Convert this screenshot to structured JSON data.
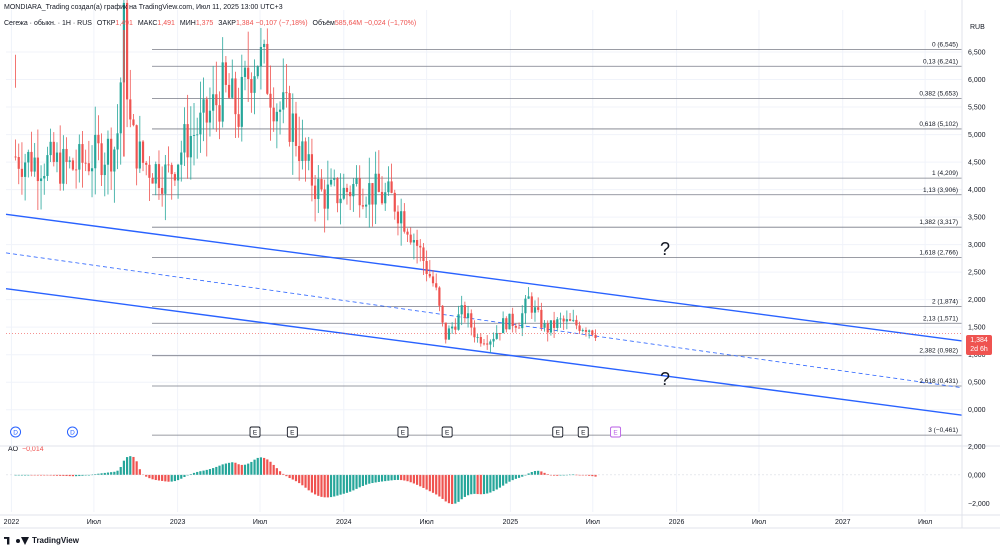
{
  "header": {
    "title": "MONDIARA_Trading создал(а) график на TradingView.com, Июл 11, 2025 13:00 UTC+3",
    "symbol": "Сегежа · обыкн. · 1Н · RUS",
    "open_label": "ОТКР",
    "open_value": "1,491",
    "high_label": "МАКС",
    "high_value": "1,491",
    "low_label": "МИН",
    "low_value": "1,375",
    "close_label": "ЗАКР",
    "close_value": "1,384",
    "change_value": "−0,107 (−7,18%)",
    "volume_label": "Объём",
    "volume_value": "585,64M",
    "volume_change": "−0,024 (−1,70%)"
  },
  "price_axis": {
    "currency": "RUB",
    "ticks": [
      "6,500",
      "6,000",
      "5,500",
      "5,000",
      "4,500",
      "4,000",
      "3,500",
      "3,000",
      "2,500",
      "2,000",
      "1,500",
      "1,000",
      "0,500",
      "0,000"
    ],
    "current_price": "1,384",
    "current_timer": "2d 6h"
  },
  "oscillator": {
    "label": "AO",
    "value": "−0,014",
    "ticks": [
      "2,000",
      "0,000",
      "−2,000"
    ]
  },
  "time_axis": {
    "labels": [
      "2022",
      "Июл",
      "2023",
      "Июл",
      "2024",
      "Июл",
      "2025",
      "Июл",
      "2026",
      "Июл",
      "2027",
      "Июл"
    ]
  },
  "fib_levels": [
    {
      "label": "0 (6,545)",
      "value": 6.545
    },
    {
      "label": "0,13 (6,241)",
      "value": 6.241
    },
    {
      "label": "0,382 (5,653)",
      "value": 5.653
    },
    {
      "label": "0,618 (5,102)",
      "value": 5.102
    },
    {
      "label": "1 (4,209)",
      "value": 4.209
    },
    {
      "label": "1,13 (3,906)",
      "value": 3.906
    },
    {
      "label": "1,382 (3,317)",
      "value": 3.317
    },
    {
      "label": "1,618 (2,766)",
      "value": 2.766
    },
    {
      "label": "2 (1,874)",
      "value": 1.874
    },
    {
      "label": "2,13 (1,571)",
      "value": 1.571
    },
    {
      "label": "2,382 (0,982)",
      "value": 0.982
    },
    {
      "label": "2,618 (0,431)",
      "value": 0.431
    },
    {
      "label": "3 (−0,461)",
      "value": -0.461
    }
  ],
  "annotations": {
    "question_upper": "?",
    "question_lower": "?",
    "dividend_marker": "D",
    "earnings_marker": "E"
  },
  "colors": {
    "up": "#26a69a",
    "down": "#ef5350",
    "channel": "#2962ff",
    "fib": "#787b86",
    "marker_purple": "#b95ee6"
  },
  "chart_data": {
    "type": "candlestick",
    "title": "Сегежа · обыкн. · 1Н · RUS",
    "ylabel": "RUB",
    "ylim": [
      -0.55,
      6.9
    ],
    "x_range": [
      "2021-12-20",
      "2027-09-20"
    ],
    "close_path": [
      [
        "2022-01-10",
        4.6
      ],
      [
        "2022-05-15",
        4.4
      ],
      [
        "2022-08-20",
        4.8
      ],
      [
        "2022-09-05",
        6.9
      ],
      [
        "2022-09-20",
        5.0
      ],
      [
        "2022-10-15",
        4.5
      ],
      [
        "2022-12-10",
        4.25
      ],
      [
        "2023-01-20",
        4.9
      ],
      [
        "2023-03-01",
        5.2
      ],
      [
        "2023-04-10",
        5.8
      ],
      [
        "2023-05-15",
        5.4
      ],
      [
        "2023-06-05",
        6.1
      ],
      [
        "2023-06-25",
        6.45
      ],
      [
        "2023-07-10",
        6.2
      ],
      [
        "2023-08-10",
        5.5
      ],
      [
        "2023-09-10",
        5.2
      ],
      [
        "2023-10-15",
        4.3
      ],
      [
        "2023-11-15",
        3.9
      ],
      [
        "2024-01-01",
        3.95
      ],
      [
        "2024-02-01",
        4.1
      ],
      [
        "2024-03-20",
        3.9
      ],
      [
        "2024-04-20",
        3.8
      ],
      [
        "2024-05-20",
        3.4
      ],
      [
        "2024-06-10",
        3.0
      ],
      [
        "2024-06-30",
        2.6
      ],
      [
        "2024-07-20",
        2.2
      ],
      [
        "2024-08-10",
        1.3
      ],
      [
        "2024-08-25",
        1.5
      ],
      [
        "2024-09-20",
        1.8
      ],
      [
        "2024-10-20",
        1.3
      ],
      [
        "2024-11-20",
        1.3
      ],
      [
        "2024-12-20",
        1.6
      ],
      [
        "2025-01-20",
        1.6
      ],
      [
        "2025-02-10",
        2.0
      ],
      [
        "2025-03-01",
        1.7
      ],
      [
        "2025-03-20",
        1.45
      ],
      [
        "2025-04-20",
        1.6
      ],
      [
        "2025-05-20",
        1.55
      ],
      [
        "2025-06-20",
        1.5
      ],
      [
        "2025-07-11",
        1.384
      ]
    ],
    "channel_lines": [
      {
        "name": "upper",
        "from": [
          "2021-12-20",
          3.55
        ],
        "to": [
          "2027-09-20",
          1.25
        ]
      },
      {
        "name": "middle",
        "from": [
          "2021-12-20",
          2.85
        ],
        "to": [
          "2027-09-20",
          0.4
        ],
        "style": "dashed"
      },
      {
        "name": "lower",
        "from": [
          "2021-12-20",
          2.2
        ],
        "to": [
          "2027-09-20",
          -0.1
        ]
      }
    ],
    "dividend_dates": [
      "2022-01-10",
      "2022-05-15"
    ],
    "earnings_dates": [
      "2023-06-20",
      "2023-09-10",
      "2024-05-10",
      "2024-08-15",
      "2025-04-15",
      "2025-06-10",
      "2025-08-20"
    ],
    "ao_ylim": [
      -2.6,
      1.6
    ]
  }
}
